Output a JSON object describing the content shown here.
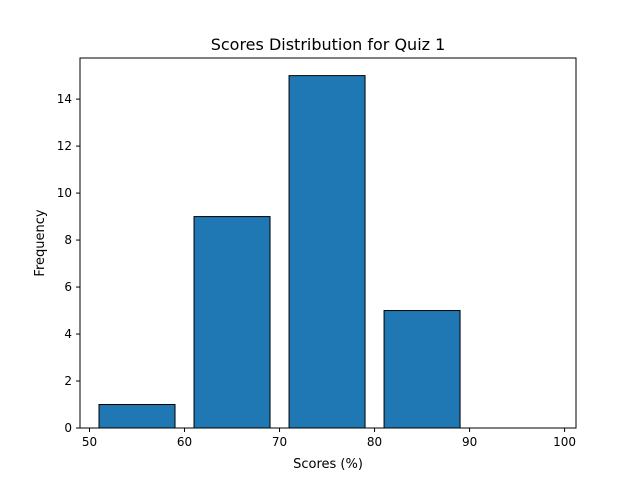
{
  "chart_data": {
    "type": "bar",
    "title": "Scores Distribution for Quiz 1",
    "xlabel": "Scores (%)",
    "ylabel": "Frequency",
    "bins": [
      {
        "start": 50,
        "end": 60,
        "value": 1
      },
      {
        "start": 60,
        "end": 70,
        "value": 9
      },
      {
        "start": 70,
        "end": 80,
        "value": 15
      },
      {
        "start": 80,
        "end": 90,
        "value": 5
      },
      {
        "start": 90,
        "end": 100,
        "value": 0
      }
    ],
    "xlim": [
      49,
      101.2
    ],
    "ylim": [
      0,
      15.75
    ],
    "xticks": [
      50,
      60,
      70,
      80,
      90,
      100
    ],
    "yticks": [
      0,
      2,
      4,
      6,
      8,
      10,
      12,
      14
    ],
    "bar_color": "#1f77b4",
    "edge_color": "#000000",
    "grid": false
  }
}
